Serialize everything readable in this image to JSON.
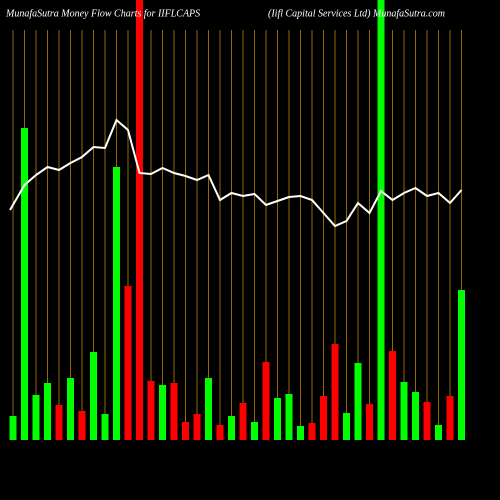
{
  "chart_data": {
    "type": "bar-line",
    "title": "MunafaSutra  Money Flow  Charts for IIFLCAPS",
    "subtitle": "(Iifl Capital Services Ltd) MunafaSutra.com",
    "categories": [
      null,
      null,
      null,
      null,
      null,
      null,
      null,
      null,
      null,
      null,
      null,
      null,
      null,
      null,
      null,
      null,
      null,
      null,
      null,
      null,
      null,
      null,
      null,
      null,
      null,
      null,
      null,
      null,
      null,
      null,
      null,
      null,
      null,
      null,
      null,
      null,
      null,
      null,
      null,
      null
    ],
    "ylim": [
      0,
      440
    ],
    "grid": true,
    "grid_color": "#b8860b",
    "background": "#000000",
    "series": [
      {
        "kind": "bar",
        "values": [
          24,
          312,
          45,
          57,
          35,
          62,
          29,
          88,
          26,
          273,
          154,
          440,
          59,
          55,
          57,
          18,
          26,
          62,
          15,
          24,
          37,
          18,
          78,
          42,
          46,
          14,
          17,
          44,
          96,
          27,
          77,
          36,
          440,
          89,
          58,
          48,
          38,
          15,
          44,
          150
        ],
        "colors": [
          "#00ff00",
          "#00ff00",
          "#00ff00",
          "#00ff00",
          "#ff0000",
          "#00ff00",
          "#ff0000",
          "#00ff00",
          "#00ff00",
          "#00ff00",
          "#ff0000",
          "#ff0000",
          "#ff0000",
          "#00ff00",
          "#ff0000",
          "#ff0000",
          "#ff0000",
          "#00ff00",
          "#ff0000",
          "#00ff00",
          "#ff0000",
          "#00ff00",
          "#ff0000",
          "#00ff00",
          "#00ff00",
          "#00ff00",
          "#ff0000",
          "#ff0000",
          "#ff0000",
          "#00ff00",
          "#00ff00",
          "#ff0000",
          "#00ff00",
          "#ff0000",
          "#00ff00",
          "#00ff00",
          "#ff0000",
          "#00ff00",
          "#ff0000",
          "#00ff00"
        ]
      },
      {
        "kind": "line",
        "color": "#ffffff",
        "values": [
          230,
          255,
          265,
          273,
          270,
          277,
          283,
          293,
          292,
          320,
          310,
          267,
          266,
          272,
          267,
          264,
          260,
          265,
          240,
          247,
          244,
          246,
          235,
          239,
          243,
          244,
          240,
          227,
          214,
          219,
          237,
          227,
          249,
          240,
          247,
          252,
          244,
          247,
          237,
          250
        ]
      }
    ]
  }
}
